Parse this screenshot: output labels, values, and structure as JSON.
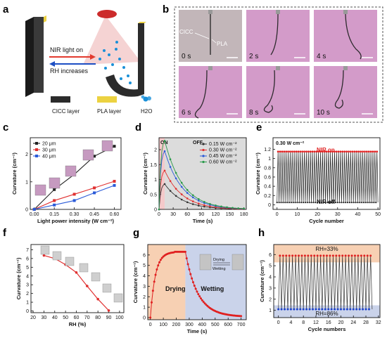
{
  "panels": {
    "a": {
      "letter": "a",
      "nir_label": "NIR light on",
      "rh_label": "RH increases",
      "legend": [
        "CICC layer",
        "PLA layer",
        "H2O"
      ],
      "colors": {
        "cicc": "#2b2b2b",
        "pla": "#ecd241",
        "water": "#1a90d8",
        "arrow_red": "#e23a2e",
        "arrow_blue": "#1d4fc4",
        "beam": "#e05a5a"
      }
    },
    "b": {
      "letter": "b",
      "times": [
        "0 s",
        "2 s",
        "4 s",
        "6 s",
        "8 s",
        "10 s"
      ],
      "label_cicc": "CICC",
      "label_pla": "PLA",
      "frame_color": "#d9a7cf"
    },
    "c": {
      "letter": "c"
    },
    "d": {
      "letter": "d",
      "on_label": "ON",
      "off_label": "OFF"
    },
    "e": {
      "letter": "e",
      "annotation": "0.30 W cm⁻²",
      "nir_on": "NIR on",
      "nir_off": "NIR off"
    },
    "f": {
      "letter": "f"
    },
    "g": {
      "letter": "g",
      "drying": "Drying",
      "wetting": "Wetting",
      "inset_drying": "Drying",
      "inset_wetting": "Wetting"
    },
    "h": {
      "letter": "h"
    }
  },
  "chart_data": [
    {
      "panel": "c",
      "type": "line",
      "xlabel": "Light power intensity (W cm⁻²)",
      "ylabel": "Curvature (cm⁻¹)",
      "xlim": [
        -0.03,
        0.65
      ],
      "ylim": [
        0,
        2.6
      ],
      "xticks": [
        0.0,
        0.15,
        0.3,
        0.45,
        0.6
      ],
      "xtick_labels": [
        "0.00",
        "0.15",
        "0.30",
        "0.45",
        "0.60"
      ],
      "yticks": [
        0,
        1,
        2
      ],
      "x": [
        0.0,
        0.15,
        0.3,
        0.45,
        0.6
      ],
      "series": [
        {
          "name": "20 μm",
          "color": "#222222",
          "values": [
            0.0,
            0.72,
            1.27,
            1.93,
            2.29
          ]
        },
        {
          "name": "30 μm",
          "color": "#e03030",
          "values": [
            0.0,
            0.32,
            0.55,
            0.78,
            1.02
          ]
        },
        {
          "name": "40 μm",
          "color": "#2a5ad8",
          "values": [
            0.0,
            0.16,
            0.32,
            0.6,
            0.87
          ]
        }
      ],
      "legend": "top-left"
    },
    {
      "panel": "d",
      "type": "line",
      "xlabel": "Time (s)",
      "ylabel": "Curvature (cm⁻¹)",
      "xlim": [
        0,
        185
      ],
      "ylim": [
        0,
        2.4
      ],
      "xticks": [
        0,
        30,
        60,
        90,
        120,
        150,
        180
      ],
      "yticks": [
        0.0,
        0.5,
        1.0,
        1.5,
        2.0
      ],
      "on_interval": [
        0,
        12
      ],
      "series": [
        {
          "name": "0.15 W cm⁻²",
          "color": "#333333",
          "peak": 0.85
        },
        {
          "name": "0.30 W cm⁻²",
          "color": "#e03030",
          "peak": 1.3
        },
        {
          "name": "0.45 W cm⁻²",
          "color": "#2a5ad8",
          "peak": 1.95
        },
        {
          "name": "0.60 W cm⁻²",
          "color": "#2a9a4a",
          "peak": 2.3
        }
      ],
      "legend": "top-right"
    },
    {
      "panel": "e",
      "type": "line",
      "xlabel": "Cycle number",
      "ylabel": "Curvature (cm⁻¹)",
      "xlim": [
        -2,
        51
      ],
      "ylim": [
        -0.1,
        1.45
      ],
      "xticks": [
        0,
        10,
        20,
        30,
        40,
        50
      ],
      "yticks": [
        0.0,
        0.2,
        0.4,
        0.6,
        0.8,
        1.0,
        1.2
      ],
      "cycles": 50,
      "high_value": 1.15,
      "low_value": 0.05,
      "line_color": "#222222",
      "high_marker_color": "#e02020"
    },
    {
      "panel": "f",
      "type": "line",
      "xlabel": "RH (%)",
      "ylabel": "Curvature (cm⁻¹)",
      "xlim": [
        18,
        104
      ],
      "ylim": [
        -0.2,
        7.6
      ],
      "xticks": [
        20,
        30,
        40,
        50,
        60,
        70,
        80,
        90,
        100
      ],
      "yticks": [
        0,
        1,
        2,
        3,
        4,
        5,
        6,
        7
      ],
      "x": [
        30,
        40,
        50,
        60,
        70,
        80,
        90
      ],
      "values": [
        6.35,
        6.0,
        5.3,
        4.4,
        2.85,
        1.35,
        0.05
      ],
      "color": "#e03030"
    },
    {
      "panel": "g",
      "type": "line",
      "xlabel": "Time (s)",
      "ylabel": "Curvature (cm⁻¹)",
      "xlim": [
        -20,
        740
      ],
      "ylim": [
        -0.2,
        7.0
      ],
      "xticks": [
        0,
        100,
        200,
        300,
        400,
        500,
        600,
        700
      ],
      "yticks": [
        0,
        1,
        2,
        3,
        4,
        5,
        6
      ],
      "drying_interval": [
        0,
        270
      ],
      "wetting_interval": [
        270,
        740
      ],
      "peak": 6.3,
      "end_value": 0.08,
      "color": "#e02020"
    },
    {
      "panel": "h",
      "type": "line",
      "xlabel": "Cycle numbers",
      "ylabel": "Curvature (cm⁻¹)",
      "xlim": [
        -1.5,
        32.5
      ],
      "ylim": [
        0.35,
        6.9
      ],
      "xticks": [
        0,
        4,
        8,
        12,
        16,
        20,
        24,
        28,
        32
      ],
      "yticks": [
        1,
        2,
        3,
        4,
        5,
        6
      ],
      "cycles": 30,
      "high_value": 5.9,
      "low_value": 1.1,
      "high_label": "RH=33%",
      "low_label": "RH=86%",
      "high_marker_color": "#e02020",
      "low_marker_color": "#1a3fcc"
    }
  ]
}
